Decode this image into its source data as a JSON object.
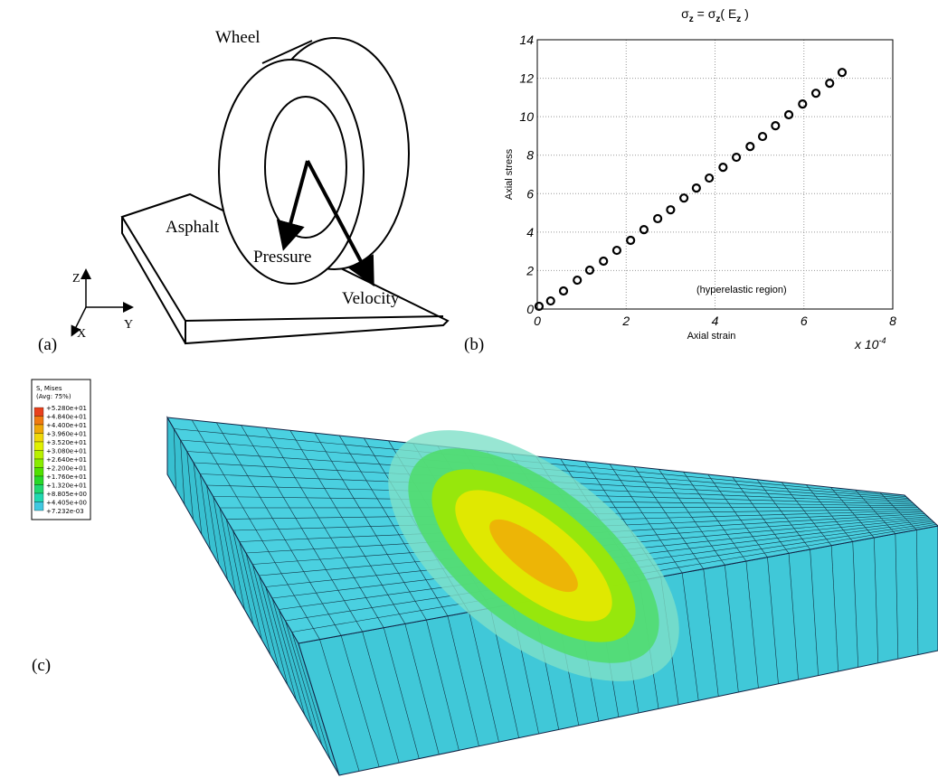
{
  "panel_a": {
    "label": "(a)",
    "wheel": "Wheel",
    "asphalt": "Asphalt",
    "pressure": "Pressure",
    "velocity": "Velocity",
    "z": "Z",
    "y": "Y",
    "x": "X"
  },
  "chart_data": {
    "type": "scatter",
    "panel_label": "(b)",
    "title": [
      "σ",
      "z",
      " = σ",
      "z",
      "( E",
      "z",
      " )"
    ],
    "x_label": "Axial strain",
    "y_label": "Axial stress",
    "x_multiplier": "x 10",
    "x_exponent": "-4",
    "annotation": "(hyperelastic region)",
    "x": [
      0.04,
      0.3,
      0.59,
      0.9,
      1.18,
      1.49,
      1.79,
      2.1,
      2.4,
      2.71,
      3.0,
      3.3,
      3.58,
      3.87,
      4.18,
      4.48,
      4.79,
      5.07,
      5.36,
      5.66,
      5.97,
      6.27,
      6.58,
      6.86
    ],
    "values": [
      0.14,
      0.42,
      0.94,
      1.5,
      2.02,
      2.49,
      3.05,
      3.57,
      4.13,
      4.7,
      5.16,
      5.77,
      6.29,
      6.81,
      7.37,
      7.89,
      8.45,
      8.97,
      9.53,
      10.1,
      10.66,
      11.22,
      11.74,
      12.3
    ],
    "color": "#000000",
    "xlim": [
      0,
      8
    ],
    "ylim": [
      0,
      14
    ],
    "xticks": [
      0,
      2,
      4,
      6,
      8
    ],
    "yticks": [
      0,
      2,
      4,
      6,
      8,
      10,
      12,
      14
    ],
    "grid": true
  },
  "panel_c": {
    "label": "(c)",
    "legend_title": "S, Mises",
    "legend_subtitle": "(Avg: 75%)",
    "legend_labels": [
      "+5.280e+01",
      "+4.840e+01",
      "+4.400e+01",
      "+3.960e+01",
      "+3.520e+01",
      "+3.080e+01",
      "+2.640e+01",
      "+2.200e+01",
      "+1.760e+01",
      "+1.320e+01",
      "+8.805e+00",
      "+4.405e+00",
      "+7.232e-03"
    ],
    "legend_colors": [
      "#e8401c",
      "#f07a10",
      "#f0a808",
      "#f0d808",
      "#e0f000",
      "#b8f000",
      "#88ec00",
      "#50e000",
      "#28d828",
      "#20d870",
      "#20d8b0",
      "#40c8e0"
    ]
  }
}
